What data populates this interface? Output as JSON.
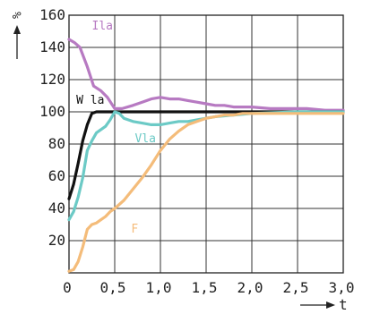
{
  "chart_data": {
    "type": "line",
    "xlim": [
      0,
      3.0
    ],
    "ylim": [
      0,
      160
    ],
    "x_ticks": [
      0,
      0.5,
      1.0,
      1.5,
      2.0,
      2.5,
      3.0
    ],
    "y_ticks": [
      20,
      40,
      60,
      80,
      100,
      120,
      140,
      160
    ],
    "x_tick_labels": [
      "0",
      "0,5",
      "1,0",
      "1,5",
      "2,0",
      "2,5",
      "3,0"
    ],
    "y_tick_labels": [
      "20",
      "40",
      "60",
      "80",
      "100",
      "120",
      "140",
      "160"
    ],
    "ylabel": "%",
    "xlabel": "t",
    "grid": true,
    "series": [
      {
        "name": "Ila",
        "color": "#b77ac2",
        "x": [
          0,
          0.06,
          0.12,
          0.2,
          0.27,
          0.35,
          0.42,
          0.5,
          0.58,
          0.7,
          0.8,
          0.9,
          1.0,
          1.1,
          1.2,
          1.3,
          1.4,
          1.5,
          1.6,
          1.7,
          1.8,
          2.0,
          2.2,
          2.4,
          2.6,
          2.8,
          3.0
        ],
        "y": [
          145,
          143,
          140,
          128,
          116,
          113,
          109,
          102,
          102,
          104,
          106,
          108,
          109,
          108,
          108,
          107,
          106,
          105,
          104,
          104,
          103,
          103,
          102,
          102,
          102,
          101,
          101
        ]
      },
      {
        "name": "W la",
        "color": "#111111",
        "x": [
          0,
          0.05,
          0.1,
          0.15,
          0.2,
          0.25,
          0.3,
          0.4,
          0.5,
          0.6,
          0.8,
          1.0,
          1.5,
          2.0,
          2.5,
          3.0
        ],
        "y": [
          46,
          55,
          68,
          82,
          92,
          99,
          100,
          100,
          100,
          100,
          100,
          100,
          100,
          100,
          100,
          100
        ]
      },
      {
        "name": "Vla",
        "color": "#6ccac6",
        "x": [
          0,
          0.05,
          0.1,
          0.15,
          0.2,
          0.25,
          0.3,
          0.35,
          0.4,
          0.45,
          0.5,
          0.55,
          0.6,
          0.7,
          0.8,
          0.9,
          1.0,
          1.1,
          1.2,
          1.3,
          1.4,
          1.5,
          1.6,
          1.8,
          2.0,
          2.5,
          3.0
        ],
        "y": [
          33,
          38,
          47,
          59,
          76,
          82,
          87,
          89,
          91,
          95,
          100,
          99,
          96,
          94,
          93,
          92,
          92,
          93,
          94,
          94,
          95,
          96,
          97,
          98,
          99,
          100,
          100
        ]
      },
      {
        "name": "F",
        "color": "#f4bc7a",
        "x": [
          0,
          0.05,
          0.1,
          0.15,
          0.2,
          0.25,
          0.3,
          0.35,
          0.4,
          0.45,
          0.5,
          0.6,
          0.7,
          0.8,
          0.9,
          1.0,
          1.1,
          1.2,
          1.3,
          1.4,
          1.5,
          1.6,
          1.7,
          1.8,
          1.9,
          2.0,
          2.2,
          2.5,
          3.0
        ],
        "y": [
          1,
          2,
          7,
          16,
          27,
          30,
          31,
          33,
          35,
          38,
          40,
          45,
          52,
          59,
          67,
          76,
          83,
          88,
          92,
          94,
          96,
          97,
          98,
          98,
          99,
          99,
          99,
          99,
          99
        ]
      }
    ],
    "labels": [
      {
        "text": "Ila",
        "series": 0,
        "at": [
          0.25,
          151
        ]
      },
      {
        "text": "W la",
        "series": 1,
        "at": [
          0.08,
          105
        ]
      },
      {
        "text": "Vla",
        "series": 2,
        "at": [
          0.72,
          81
        ]
      },
      {
        "text": "F",
        "series": 3,
        "at": [
          0.68,
          25
        ]
      }
    ]
  }
}
